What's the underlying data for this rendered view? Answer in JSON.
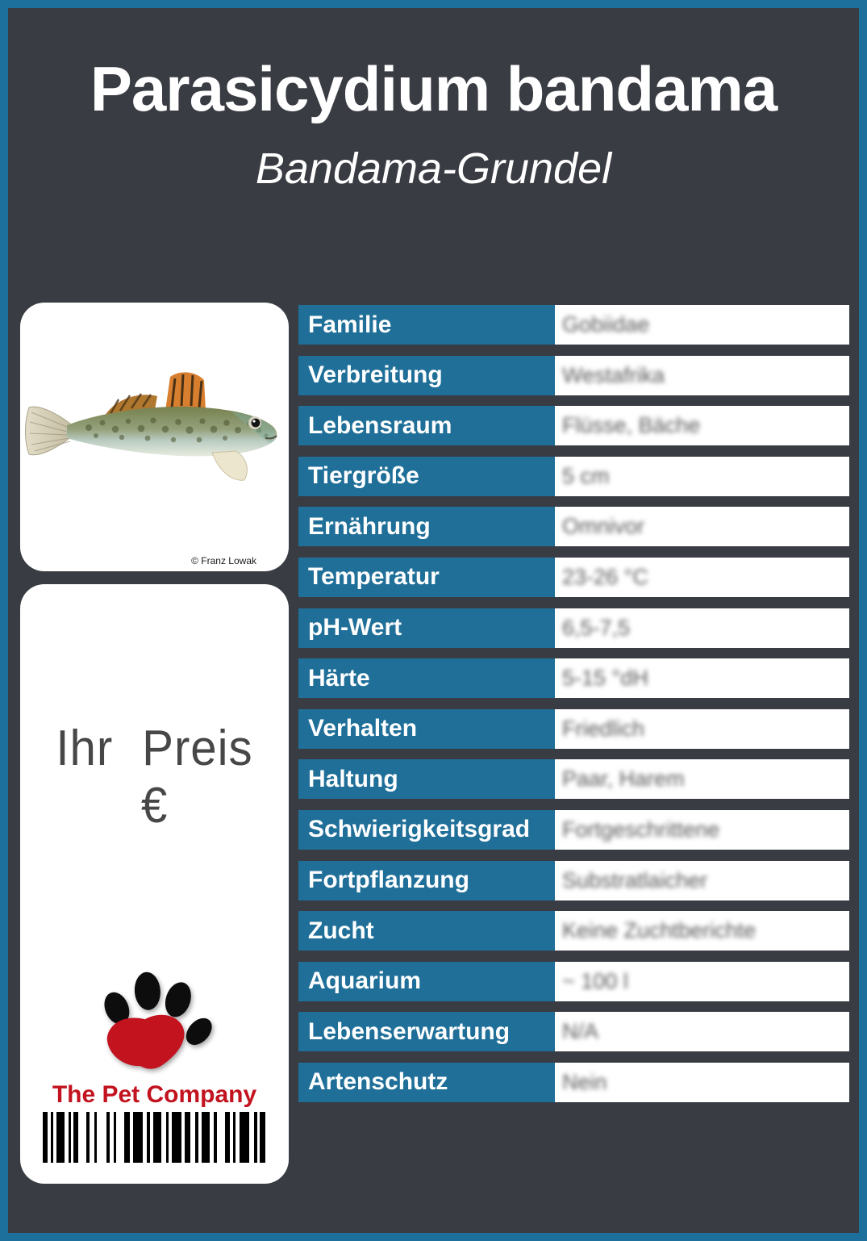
{
  "page": {
    "title": "Parasicydium bandama",
    "subtitle": "Bandama-Grundel"
  },
  "photo": {
    "credit": "© Franz Lowak"
  },
  "price": {
    "label": "Ihr Preis €"
  },
  "logo": {
    "company": "The Pet Company"
  },
  "colors": {
    "accent_blue": "#1f6f99",
    "border_blue": "#1d6f9c",
    "background": "#393c43",
    "logo_red": "#c2131f"
  },
  "table": {
    "rows": [
      {
        "label": "Familie",
        "value": "Gobiidae"
      },
      {
        "label": "Verbreitung",
        "value": "Westafrika"
      },
      {
        "label": "Lebensraum",
        "value": "Flüsse, Bäche"
      },
      {
        "label": "Tiergröße",
        "value": "5 cm"
      },
      {
        "label": "Ernährung",
        "value": "Omnivor"
      },
      {
        "label": "Temperatur",
        "value": "23-26 °C"
      },
      {
        "label": "pH-Wert",
        "value": "6,5-7,5"
      },
      {
        "label": "Härte",
        "value": "5-15 °dH"
      },
      {
        "label": "Verhalten",
        "value": "Friedlich"
      },
      {
        "label": "Haltung",
        "value": "Paar, Harem"
      },
      {
        "label": "Schwierigkeitsgrad",
        "value": "Fortgeschrittene"
      },
      {
        "label": "Fortpflanzung",
        "value": "Substratlaicher"
      },
      {
        "label": "Zucht",
        "value": "Keine Zuchtberichte"
      },
      {
        "label": "Aquarium",
        "value": "~ 100 l"
      },
      {
        "label": "Lebenserwartung",
        "value": "N/A"
      },
      {
        "label": "Artenschutz",
        "value": "Nein"
      }
    ]
  },
  "barcode": {
    "pattern": [
      6,
      4,
      3,
      4,
      10,
      5,
      3,
      3,
      6,
      10,
      4,
      6,
      3,
      12,
      4,
      5,
      3,
      10,
      7,
      4,
      12,
      5,
      4,
      4,
      10,
      6,
      3,
      4,
      12,
      4,
      7,
      6,
      4,
      4,
      10,
      5,
      4,
      10,
      6,
      4,
      3,
      5,
      12,
      6,
      4,
      3,
      7
    ]
  }
}
